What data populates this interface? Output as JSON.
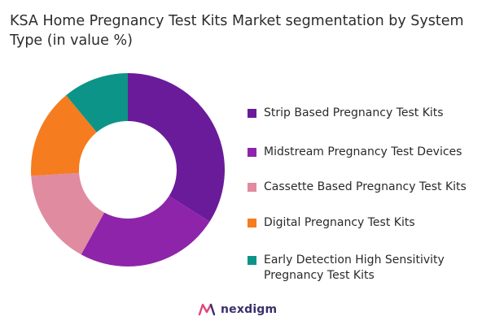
{
  "title": "KSA Home Pregnancy Test Kits Market segmentation by System Type (in value %)",
  "chart_data": {
    "type": "pie",
    "variant": "donut",
    "title": "KSA Home Pregnancy Test Kits Market segmentation by System Type (in value %)",
    "legend_position": "right",
    "slices": [
      {
        "label": "Strip Based Pregnancy Test Kits",
        "value": 34,
        "color": "#6a1b9a"
      },
      {
        "label": "Midstream Pregnancy Test Devices",
        "value": 24,
        "color": "#8e24aa"
      },
      {
        "label": "Cassette Based Pregnancy Test Kits",
        "value": 16,
        "color": "#e08ba0"
      },
      {
        "label": "Digital Pregnancy Test Kits",
        "value": 15,
        "color": "#f57c1f"
      },
      {
        "label": "Early Detection High Sensitivity Pregnancy Test Kits",
        "value": 11,
        "color": "#0d9488"
      }
    ]
  },
  "brand": {
    "name": "nexdigm"
  }
}
